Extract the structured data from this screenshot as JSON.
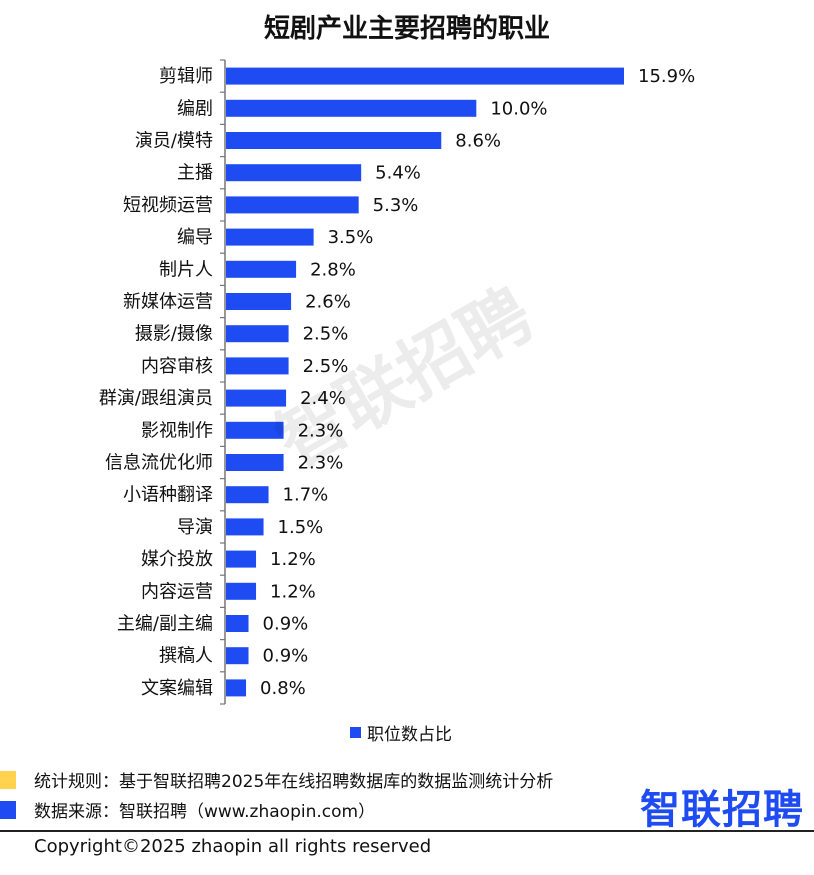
{
  "colors": {
    "bar": "#1e4cf2",
    "note1": "#ffd34d",
    "note2": "#1e4cf2",
    "logo": "#1e4cf2"
  },
  "chart_data": {
    "type": "bar",
    "orientation": "horizontal",
    "title": "短剧产业主要招聘的职业",
    "categories": [
      "剪辑师",
      "编剧",
      "演员/模特",
      "主播",
      "短视频运营",
      "编导",
      "制片人",
      "新媒体运营",
      "摄影/摄像",
      "内容审核",
      "群演/跟组演员",
      "影视制作",
      "信息流优化师",
      "小语种翻译",
      "导演",
      "媒介投放",
      "内容运营",
      "主编/副主编",
      "撰稿人",
      "文案编辑"
    ],
    "series": [
      {
        "name": "职位数占比",
        "values": [
          15.9,
          10.0,
          8.6,
          5.4,
          5.3,
          3.5,
          2.8,
          2.6,
          2.5,
          2.5,
          2.4,
          2.3,
          2.3,
          1.7,
          1.5,
          1.2,
          1.2,
          0.9,
          0.9,
          0.8
        ],
        "labels": [
          "15.9%",
          "10.0%",
          "8.6%",
          "5.4%",
          "5.3%",
          "3.5%",
          "2.8%",
          "2.6%",
          "2.5%",
          "2.5%",
          "2.4%",
          "2.3%",
          "2.3%",
          "1.7%",
          "1.5%",
          "1.2%",
          "1.2%",
          "0.9%",
          "0.9%",
          "0.8%"
        ]
      }
    ],
    "legend": "bottom-center",
    "grid": false
  },
  "notes": {
    "rule": "统计规则：基于智联招聘2025年在线招聘数据库的数据监测统计分析",
    "source": "数据来源：智联招聘（www.zhaopin.com）"
  },
  "logo_text": "智联招聘",
  "watermark_text": "智联招聘",
  "copyright": "Copyright©2025 zhaopin all rights reserved"
}
